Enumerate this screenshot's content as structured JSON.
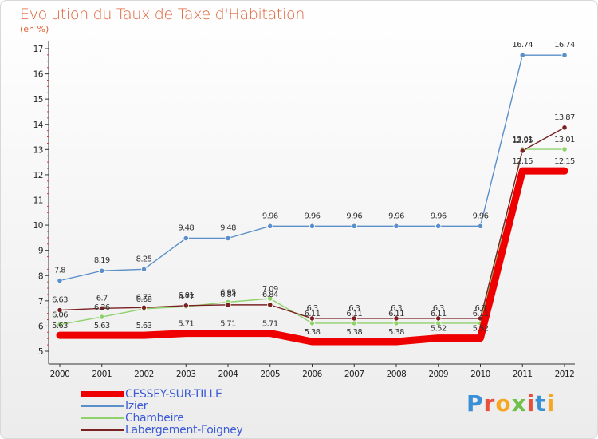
{
  "title": "Evolution du Taux de Taxe d'Habitation",
  "unit_label": "(en %)",
  "brand": {
    "text": "Proxiti",
    "colors": [
      "#3b8fd6",
      "#e94e3c",
      "#f5a623",
      "#6fbf4a",
      "#e94e3c",
      "#3b8fd6",
      "#f5a623"
    ]
  },
  "chart_data": {
    "type": "line",
    "title": "Evolution du Taux de Taxe d'Habitation",
    "ylabel": "(en %)",
    "xlabel": "",
    "x": [
      "2000",
      "2001",
      "2002",
      "2003",
      "2004",
      "2005",
      "2006",
      "2007",
      "2008",
      "2009",
      "2010",
      "2011",
      "2012"
    ],
    "ylim": [
      5,
      17
    ],
    "yticks": [
      "5",
      "6",
      "7",
      "8",
      "9",
      "10",
      "11",
      "12",
      "13",
      "14",
      "15",
      "16",
      "17"
    ],
    "grid": false,
    "legend_position": "bottom-left",
    "series": [
      {
        "name": "CESSEY-SUR-TILLE",
        "color": "#ee0000",
        "values": [
          5.63,
          5.63,
          5.63,
          5.71,
          5.71,
          5.71,
          5.38,
          5.38,
          5.38,
          5.52,
          5.52,
          12.15,
          12.15
        ],
        "labels": [
          "5.63",
          "5.63",
          "5.63",
          "5.71",
          "5.71",
          "5.71",
          "5.38",
          "5.38",
          "5.38",
          "5.52",
          "5.52",
          "12.15",
          "12.15"
        ]
      },
      {
        "name": "Izier",
        "color": "#5b8fc9",
        "values": [
          7.8,
          8.19,
          8.25,
          9.48,
          9.48,
          9.96,
          9.96,
          9.96,
          9.96,
          9.96,
          9.96,
          16.74,
          16.74
        ],
        "labels": [
          "7.8",
          "8.19",
          "8.25",
          "9.48",
          "9.48",
          "9.96",
          "9.96",
          "9.96",
          "9.96",
          "9.96",
          "9.96",
          "16.74",
          "16.74"
        ]
      },
      {
        "name": "Chambeire",
        "color": "#8fd16a",
        "values": [
          6.06,
          6.36,
          6.68,
          6.77,
          6.95,
          7.09,
          6.11,
          6.11,
          6.11,
          6.11,
          6.11,
          13.01,
          13.01
        ],
        "labels": [
          "6.06",
          "6.36",
          "6.68",
          "6.77",
          "6.95",
          "7.09",
          "6.11",
          "6.11",
          "6.11",
          "6.11",
          "6.11",
          "13.01",
          "13.01"
        ]
      },
      {
        "name": "Labergement-Foigney",
        "color": "#7a2222",
        "values": [
          6.63,
          6.7,
          6.73,
          6.81,
          6.84,
          6.84,
          6.3,
          6.3,
          6.3,
          6.3,
          6.3,
          12.95,
          13.87
        ],
        "labels": [
          "6.63",
          "6.7",
          "6.73",
          "6.81",
          "6.84",
          "6.84",
          "6.3",
          "6.3",
          "6.3",
          "6.3",
          "6.3",
          "12.95",
          "13.87"
        ]
      }
    ]
  }
}
